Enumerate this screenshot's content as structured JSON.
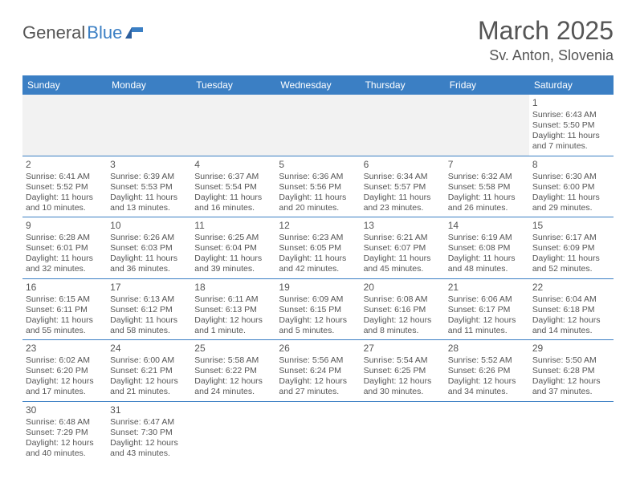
{
  "logo": {
    "part1": "General",
    "part2": "Blue"
  },
  "title": "March 2025",
  "location": "Sv. Anton, Slovenia",
  "colors": {
    "header_bg": "#3b7fc4",
    "header_text": "#ffffff",
    "border": "#3b7fc4",
    "text": "#555555",
    "empty_bg": "#f2f2f2",
    "page_bg": "#ffffff"
  },
  "typography": {
    "title_fontsize": 32,
    "location_fontsize": 18,
    "dayhead_fontsize": 12,
    "body_fontsize": 10.5,
    "logo_fontsize": 22
  },
  "day_headers": [
    "Sunday",
    "Monday",
    "Tuesday",
    "Wednesday",
    "Thursday",
    "Friday",
    "Saturday"
  ],
  "weeks": [
    [
      null,
      null,
      null,
      null,
      null,
      null,
      {
        "n": "1",
        "sr": "Sunrise: 6:43 AM",
        "ss": "Sunset: 5:50 PM",
        "dl": "Daylight: 11 hours and 7 minutes."
      }
    ],
    [
      {
        "n": "2",
        "sr": "Sunrise: 6:41 AM",
        "ss": "Sunset: 5:52 PM",
        "dl": "Daylight: 11 hours and 10 minutes."
      },
      {
        "n": "3",
        "sr": "Sunrise: 6:39 AM",
        "ss": "Sunset: 5:53 PM",
        "dl": "Daylight: 11 hours and 13 minutes."
      },
      {
        "n": "4",
        "sr": "Sunrise: 6:37 AM",
        "ss": "Sunset: 5:54 PM",
        "dl": "Daylight: 11 hours and 16 minutes."
      },
      {
        "n": "5",
        "sr": "Sunrise: 6:36 AM",
        "ss": "Sunset: 5:56 PM",
        "dl": "Daylight: 11 hours and 20 minutes."
      },
      {
        "n": "6",
        "sr": "Sunrise: 6:34 AM",
        "ss": "Sunset: 5:57 PM",
        "dl": "Daylight: 11 hours and 23 minutes."
      },
      {
        "n": "7",
        "sr": "Sunrise: 6:32 AM",
        "ss": "Sunset: 5:58 PM",
        "dl": "Daylight: 11 hours and 26 minutes."
      },
      {
        "n": "8",
        "sr": "Sunrise: 6:30 AM",
        "ss": "Sunset: 6:00 PM",
        "dl": "Daylight: 11 hours and 29 minutes."
      }
    ],
    [
      {
        "n": "9",
        "sr": "Sunrise: 6:28 AM",
        "ss": "Sunset: 6:01 PM",
        "dl": "Daylight: 11 hours and 32 minutes."
      },
      {
        "n": "10",
        "sr": "Sunrise: 6:26 AM",
        "ss": "Sunset: 6:03 PM",
        "dl": "Daylight: 11 hours and 36 minutes."
      },
      {
        "n": "11",
        "sr": "Sunrise: 6:25 AM",
        "ss": "Sunset: 6:04 PM",
        "dl": "Daylight: 11 hours and 39 minutes."
      },
      {
        "n": "12",
        "sr": "Sunrise: 6:23 AM",
        "ss": "Sunset: 6:05 PM",
        "dl": "Daylight: 11 hours and 42 minutes."
      },
      {
        "n": "13",
        "sr": "Sunrise: 6:21 AM",
        "ss": "Sunset: 6:07 PM",
        "dl": "Daylight: 11 hours and 45 minutes."
      },
      {
        "n": "14",
        "sr": "Sunrise: 6:19 AM",
        "ss": "Sunset: 6:08 PM",
        "dl": "Daylight: 11 hours and 48 minutes."
      },
      {
        "n": "15",
        "sr": "Sunrise: 6:17 AM",
        "ss": "Sunset: 6:09 PM",
        "dl": "Daylight: 11 hours and 52 minutes."
      }
    ],
    [
      {
        "n": "16",
        "sr": "Sunrise: 6:15 AM",
        "ss": "Sunset: 6:11 PM",
        "dl": "Daylight: 11 hours and 55 minutes."
      },
      {
        "n": "17",
        "sr": "Sunrise: 6:13 AM",
        "ss": "Sunset: 6:12 PM",
        "dl": "Daylight: 11 hours and 58 minutes."
      },
      {
        "n": "18",
        "sr": "Sunrise: 6:11 AM",
        "ss": "Sunset: 6:13 PM",
        "dl": "Daylight: 12 hours and 1 minute."
      },
      {
        "n": "19",
        "sr": "Sunrise: 6:09 AM",
        "ss": "Sunset: 6:15 PM",
        "dl": "Daylight: 12 hours and 5 minutes."
      },
      {
        "n": "20",
        "sr": "Sunrise: 6:08 AM",
        "ss": "Sunset: 6:16 PM",
        "dl": "Daylight: 12 hours and 8 minutes."
      },
      {
        "n": "21",
        "sr": "Sunrise: 6:06 AM",
        "ss": "Sunset: 6:17 PM",
        "dl": "Daylight: 12 hours and 11 minutes."
      },
      {
        "n": "22",
        "sr": "Sunrise: 6:04 AM",
        "ss": "Sunset: 6:18 PM",
        "dl": "Daylight: 12 hours and 14 minutes."
      }
    ],
    [
      {
        "n": "23",
        "sr": "Sunrise: 6:02 AM",
        "ss": "Sunset: 6:20 PM",
        "dl": "Daylight: 12 hours and 17 minutes."
      },
      {
        "n": "24",
        "sr": "Sunrise: 6:00 AM",
        "ss": "Sunset: 6:21 PM",
        "dl": "Daylight: 12 hours and 21 minutes."
      },
      {
        "n": "25",
        "sr": "Sunrise: 5:58 AM",
        "ss": "Sunset: 6:22 PM",
        "dl": "Daylight: 12 hours and 24 minutes."
      },
      {
        "n": "26",
        "sr": "Sunrise: 5:56 AM",
        "ss": "Sunset: 6:24 PM",
        "dl": "Daylight: 12 hours and 27 minutes."
      },
      {
        "n": "27",
        "sr": "Sunrise: 5:54 AM",
        "ss": "Sunset: 6:25 PM",
        "dl": "Daylight: 12 hours and 30 minutes."
      },
      {
        "n": "28",
        "sr": "Sunrise: 5:52 AM",
        "ss": "Sunset: 6:26 PM",
        "dl": "Daylight: 12 hours and 34 minutes."
      },
      {
        "n": "29",
        "sr": "Sunrise: 5:50 AM",
        "ss": "Sunset: 6:28 PM",
        "dl": "Daylight: 12 hours and 37 minutes."
      }
    ],
    [
      {
        "n": "30",
        "sr": "Sunrise: 6:48 AM",
        "ss": "Sunset: 7:29 PM",
        "dl": "Daylight: 12 hours and 40 minutes."
      },
      {
        "n": "31",
        "sr": "Sunrise: 6:47 AM",
        "ss": "Sunset: 7:30 PM",
        "dl": "Daylight: 12 hours and 43 minutes."
      },
      null,
      null,
      null,
      null,
      null
    ]
  ]
}
